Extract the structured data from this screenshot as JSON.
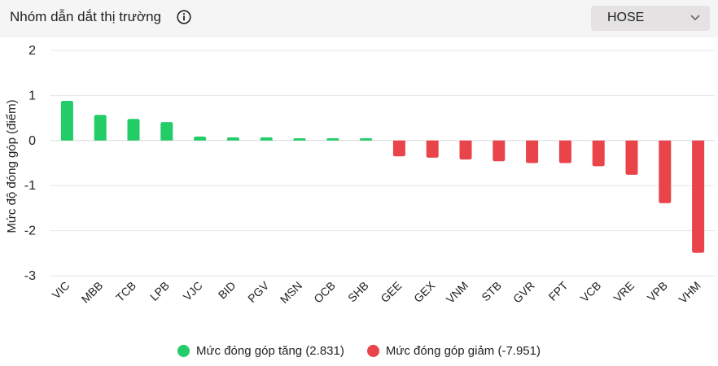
{
  "header": {
    "title": "Nhóm dẫn dắt thị trường",
    "info_icon": "info-circle-icon",
    "exchange": {
      "selected": "HOSE",
      "icon": "chevron-down-icon"
    }
  },
  "colors": {
    "positive": "#22cc66",
    "negative": "#e8444a",
    "grid": "#e6e6e6",
    "header_bg": "#f5f5f5"
  },
  "chart_data": {
    "type": "bar",
    "ylabel": "Mức độ đóng góp (điểm)",
    "ylim": [
      -3,
      2
    ],
    "yticks": [
      2,
      1,
      0,
      -1,
      -2,
      -3
    ],
    "grid": true,
    "categories": [
      "VIC",
      "MBB",
      "TCB",
      "LPB",
      "VJC",
      "BID",
      "PGV",
      "MSN",
      "OCB",
      "SHB",
      "GEE",
      "GEX",
      "VNM",
      "STB",
      "GVR",
      "FPT",
      "VCB",
      "VRE",
      "VPB",
      "VHM"
    ],
    "values": [
      0.88,
      0.57,
      0.48,
      0.41,
      0.09,
      0.07,
      0.07,
      0.05,
      0.05,
      0.05,
      -0.35,
      -0.38,
      -0.42,
      -0.46,
      -0.5,
      -0.5,
      -0.57,
      -0.76,
      -1.39,
      -2.49
    ],
    "legend": [
      {
        "label": "Mức đóng góp tăng (2.831)",
        "color": "#22cc66"
      },
      {
        "label": "Mức đóng góp giảm (-7.951)",
        "color": "#e8444a"
      }
    ],
    "legend_position": "bottom"
  }
}
